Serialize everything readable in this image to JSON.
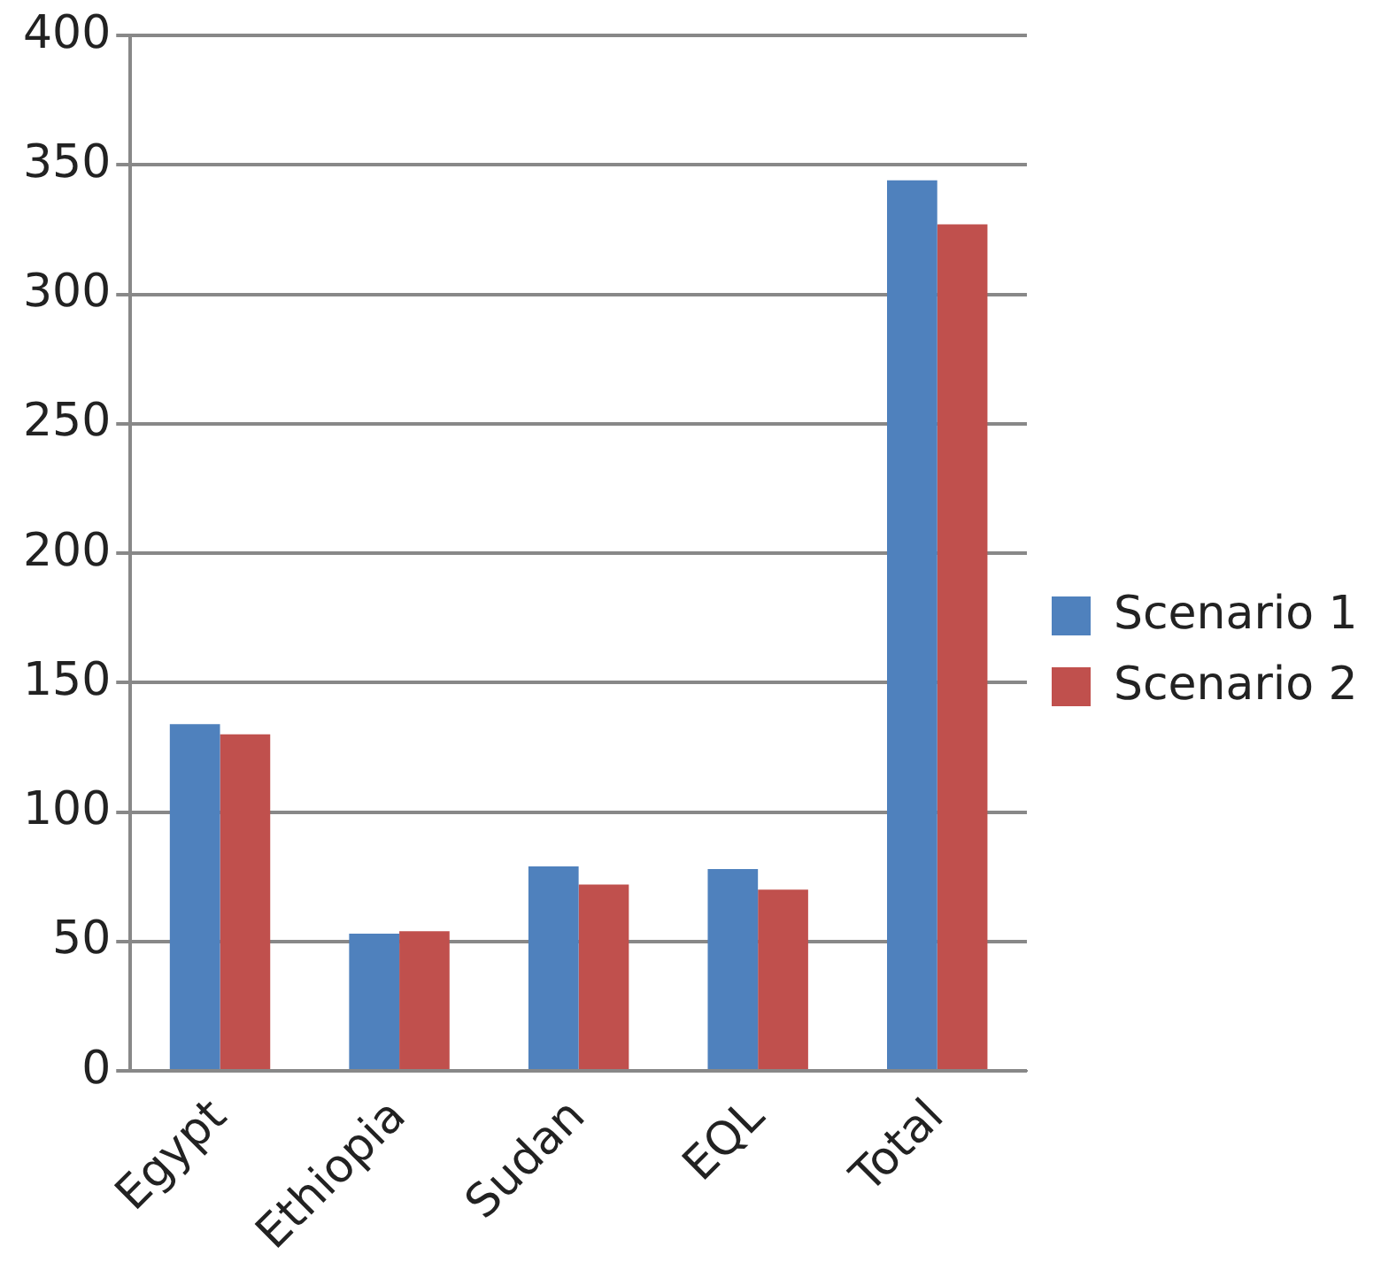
{
  "chart_data": {
    "type": "bar",
    "categories": [
      "Egypt",
      "Ethiopia",
      "Sudan",
      "EQL",
      "Total"
    ],
    "series": [
      {
        "name": "Scenario 1",
        "color": "#4f81bd",
        "values": [
          134,
          53,
          79,
          78,
          344
        ]
      },
      {
        "name": "Scenario 2",
        "color": "#c0504d",
        "values": [
          130,
          54,
          72,
          70,
          327
        ]
      }
    ],
    "ylim": [
      0,
      400
    ],
    "yticks": [
      0,
      50,
      100,
      150,
      200,
      250,
      300,
      350,
      400
    ],
    "grid": "y",
    "legend": "right"
  }
}
